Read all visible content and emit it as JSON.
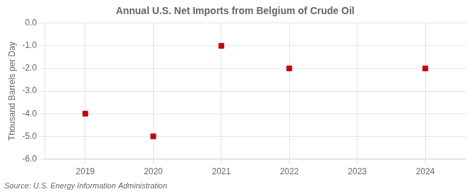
{
  "chart_data": {
    "type": "scatter",
    "title": "Annual U.S. Net Imports from Belgium of Crude Oil",
    "ylabel": "Thousand Barrels per Day",
    "annotation": "Source: U.S. Energy Information Administration",
    "x": [
      2019,
      2020,
      2021,
      2022,
      2023,
      2024
    ],
    "values": [
      -4,
      -5,
      -1,
      -2,
      null,
      -2
    ],
    "color": "#cc0000",
    "marker": "square",
    "xlim": [
      2018.4,
      2024.6
    ],
    "xticks": [
      2019,
      2020,
      2021,
      2022,
      2023,
      2024
    ],
    "ylim": [
      -6.0,
      0.0
    ],
    "yticks": [
      {
        "value": 0.0,
        "label": "0.0"
      },
      {
        "value": -1.0,
        "label": "-1.0"
      },
      {
        "value": -2.0,
        "label": "-2.0"
      },
      {
        "value": -3.0,
        "label": "-3.0"
      },
      {
        "value": -4.0,
        "label": "-4.0"
      },
      {
        "value": -5.0,
        "label": "-5.0"
      },
      {
        "value": -6.0,
        "label": "-6.0"
      }
    ],
    "grid": true
  }
}
